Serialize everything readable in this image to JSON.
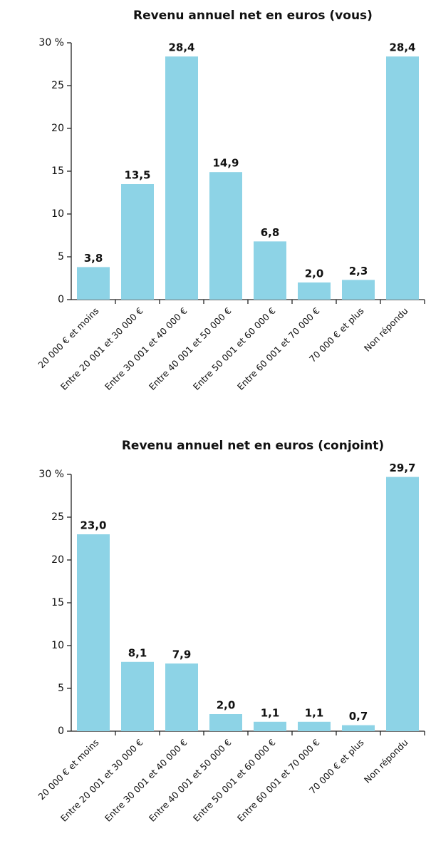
{
  "chart_data": [
    {
      "type": "bar",
      "title": "Revenu annuel net en euros (vous)",
      "categories": [
        "20 000 € et moins",
        "Entre 20 001 et 30 000 €",
        "Entre 30 001 et 40 000 €",
        "Entre 40 001 et 50 000 €",
        "Entre 50 001 et 60 000 €",
        "Entre 60 001 et 70 000 €",
        "70 000 € et plus",
        "Non répondu"
      ],
      "values": [
        3.8,
        13.5,
        28.4,
        14.9,
        6.8,
        2.0,
        2.3,
        28.4
      ],
      "value_labels": [
        "3,8",
        "13,5",
        "28,4",
        "14,9",
        "6,8",
        "2,0",
        "2,3",
        "28,4"
      ],
      "color": "#8dd3e6",
      "ylim": [
        0,
        30
      ],
      "yticks": [
        0,
        5,
        10,
        15,
        20,
        25,
        {
          "value": 30,
          "label": "30 %"
        }
      ]
    },
    {
      "type": "bar",
      "title": "Revenu annuel net en euros (conjoint)",
      "categories": [
        "20 000 € et moins",
        "Entre 20 001 et 30 000 €",
        "Entre 30 001 et 40 000 €",
        "Entre 40 001 et 50 000 €",
        "Entre 50 001 et 60 000 €",
        "Entre 60 001 et 70 000 €",
        "70 000 € et plus",
        "Non répondu"
      ],
      "values": [
        23.0,
        8.1,
        7.9,
        2.0,
        1.1,
        1.1,
        0.7,
        29.7
      ],
      "value_labels": [
        "23,0",
        "8,1",
        "7,9",
        "2,0",
        "1,1",
        "1,1",
        "0,7",
        "29,7"
      ],
      "color": "#8dd3e6",
      "ylim": [
        0,
        30
      ],
      "yticks": [
        0,
        5,
        10,
        15,
        20,
        25,
        {
          "value": 30,
          "label": "30 %"
        }
      ]
    }
  ]
}
